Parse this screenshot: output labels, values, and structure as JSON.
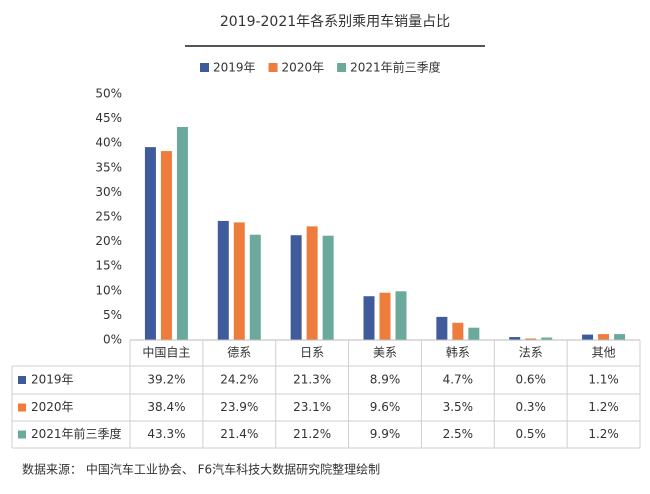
{
  "chart_data": {
    "type": "bar",
    "title": "2019-2021年各系别乘用车销量占比",
    "categories": [
      "中国自主",
      "德系",
      "日系",
      "美系",
      "韩系",
      "法系",
      "其他"
    ],
    "series": [
      {
        "name": "2019年",
        "color": "#3f5b9b",
        "values": [
          39.2,
          24.2,
          21.3,
          8.9,
          4.7,
          0.6,
          1.1
        ],
        "value_labels": [
          "39.2%",
          "24.2%",
          "21.3%",
          "8.9%",
          "4.7%",
          "0.6%",
          "1.1%"
        ]
      },
      {
        "name": "2020年",
        "color": "#ee7d3d",
        "values": [
          38.4,
          23.9,
          23.1,
          9.6,
          3.5,
          0.3,
          1.2
        ],
        "value_labels": [
          "38.4%",
          "23.9%",
          "23.1%",
          "9.6%",
          "3.5%",
          "0.3%",
          "1.2%"
        ]
      },
      {
        "name": "2021年前三季度",
        "color": "#6aa99b",
        "values": [
          43.3,
          21.4,
          21.2,
          9.9,
          2.5,
          0.5,
          1.2
        ],
        "value_labels": [
          "43.3%",
          "21.4%",
          "21.2%",
          "9.9%",
          "2.5%",
          "0.5%",
          "1.2%"
        ]
      }
    ],
    "ylim": [
      0,
      50
    ],
    "yticks": [
      {
        "value": 0,
        "label": "0%"
      },
      {
        "value": 5,
        "label": "5%"
      },
      {
        "value": 10,
        "label": "10%"
      },
      {
        "value": 15,
        "label": "15%"
      },
      {
        "value": 20,
        "label": "20%"
      },
      {
        "value": 25,
        "label": "25%"
      },
      {
        "value": 30,
        "label": "30%"
      },
      {
        "value": 35,
        "label": "35%"
      },
      {
        "value": 40,
        "label": "40%"
      },
      {
        "value": 45,
        "label": "45%"
      },
      {
        "value": 50,
        "label": "50%"
      }
    ],
    "grid": false,
    "source": "数据来源： 中国汽车工业协会、 F6汽车科技大数据研究院整理绘制"
  }
}
